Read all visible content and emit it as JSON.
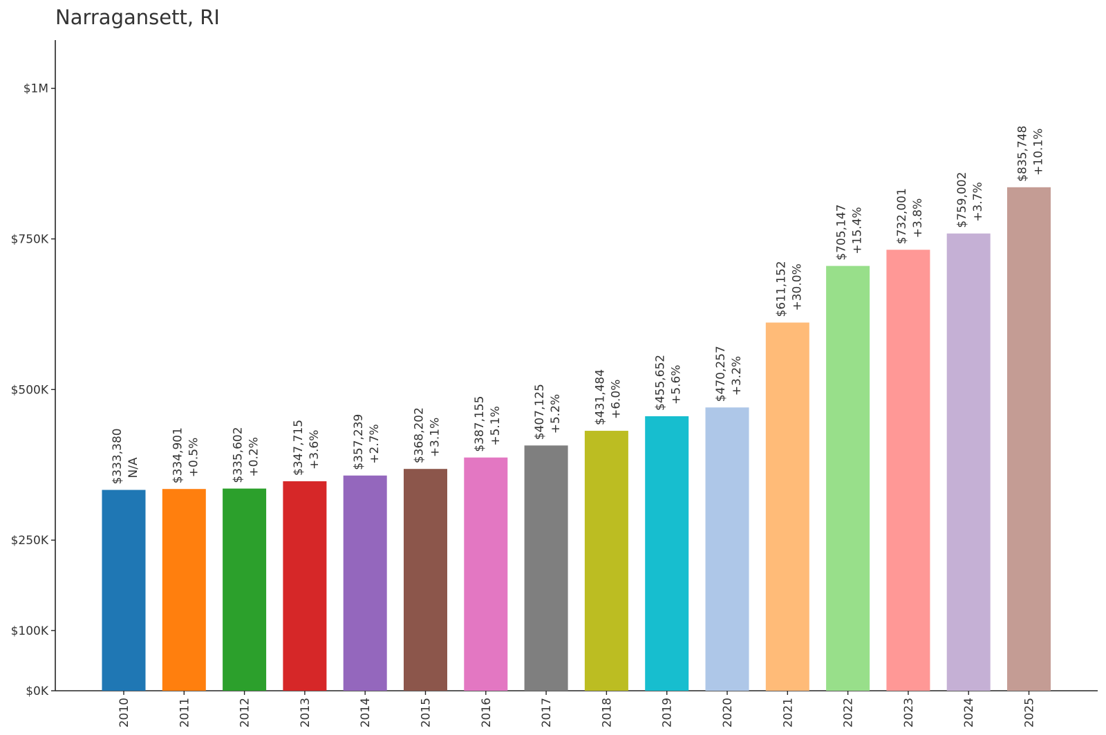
{
  "chart_data": {
    "type": "bar",
    "title": "Narragansett, RI",
    "xlabel": "",
    "ylabel": "",
    "categories": [
      "2010",
      "2011",
      "2012",
      "2013",
      "2014",
      "2015",
      "2016",
      "2017",
      "2018",
      "2019",
      "2020",
      "2021",
      "2022",
      "2023",
      "2024",
      "2025"
    ],
    "values": [
      333380,
      334901,
      335602,
      347715,
      357239,
      368202,
      387155,
      407125,
      431484,
      455652,
      470257,
      611152,
      705147,
      732001,
      759002,
      835748
    ],
    "value_labels": [
      "$333,380",
      "$334,901",
      "$335,602",
      "$347,715",
      "$357,239",
      "$368,202",
      "$387,155",
      "$407,125",
      "$431,484",
      "$455,652",
      "$470,257",
      "$611,152",
      "$705,147",
      "$732,001",
      "$759,002",
      "$835,748"
    ],
    "change_labels": [
      "N/A",
      "+0.5%",
      "+0.2%",
      "+3.6%",
      "+2.7%",
      "+3.1%",
      "+5.1%",
      "+5.2%",
      "+6.0%",
      "+5.6%",
      "+3.2%",
      "+30.0%",
      "+15.4%",
      "+3.8%",
      "+3.7%",
      "+10.1%"
    ],
    "colors": [
      "#1f77b4",
      "#ff7f0e",
      "#2ca02c",
      "#d62728",
      "#9467bd",
      "#8c564b",
      "#e377c2",
      "#7f7f7f",
      "#bcbd22",
      "#17becf",
      "#aec7e8",
      "#ffbb78",
      "#98df8a",
      "#ff9896",
      "#c5b0d5",
      "#c49c94"
    ],
    "yticks": [
      0,
      100000,
      250000,
      500000,
      750000,
      1000000
    ],
    "ytick_labels": [
      "$0K",
      "$100K",
      "$250K",
      "$500K",
      "$750K",
      "$1M"
    ],
    "ylim": [
      0,
      1080000
    ],
    "grid": false,
    "legend": "none"
  }
}
